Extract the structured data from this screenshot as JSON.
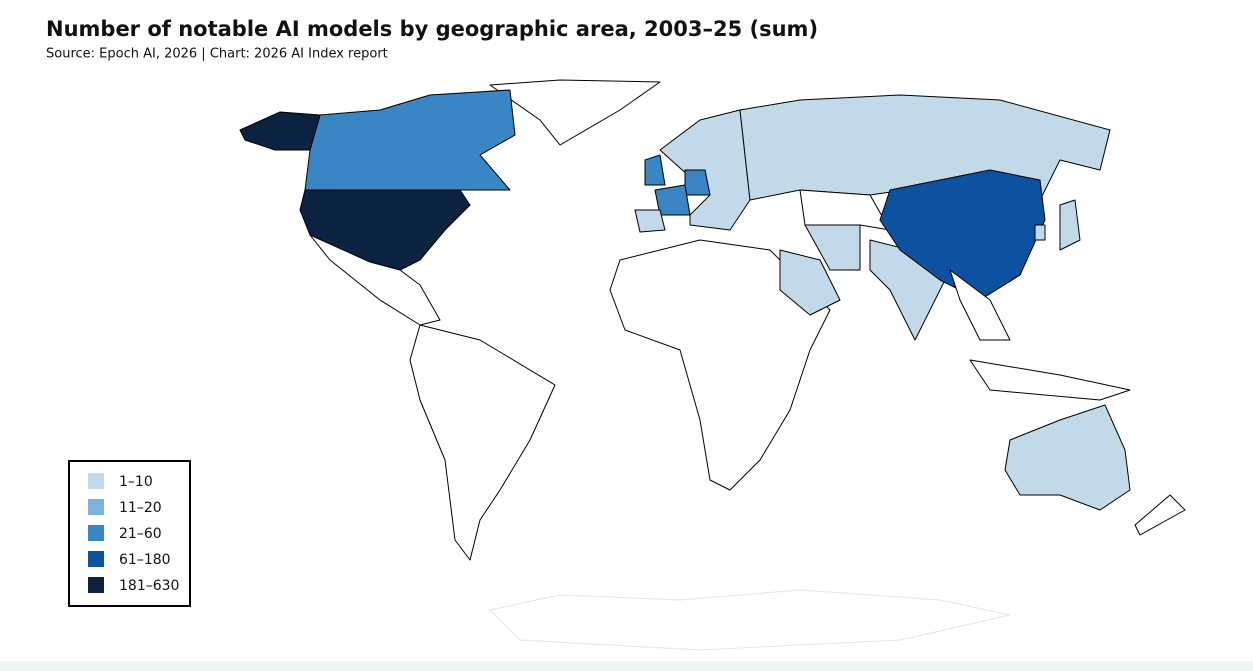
{
  "title": "Number of notable AI models by geographic area, 2003–25 (sum)",
  "subtitle": "Source: Epoch AI, 2026 | Chart: 2026 AI Index report",
  "legend": {
    "items": [
      {
        "label": "1–10",
        "color": "#c2d9ea"
      },
      {
        "label": "11–20",
        "color": "#7cb3dc"
      },
      {
        "label": "21–60",
        "color": "#3a86c4"
      },
      {
        "label": "61–180",
        "color": "#0d52a0"
      },
      {
        "label": "181–630",
        "color": "#0b2240"
      }
    ]
  }
}
